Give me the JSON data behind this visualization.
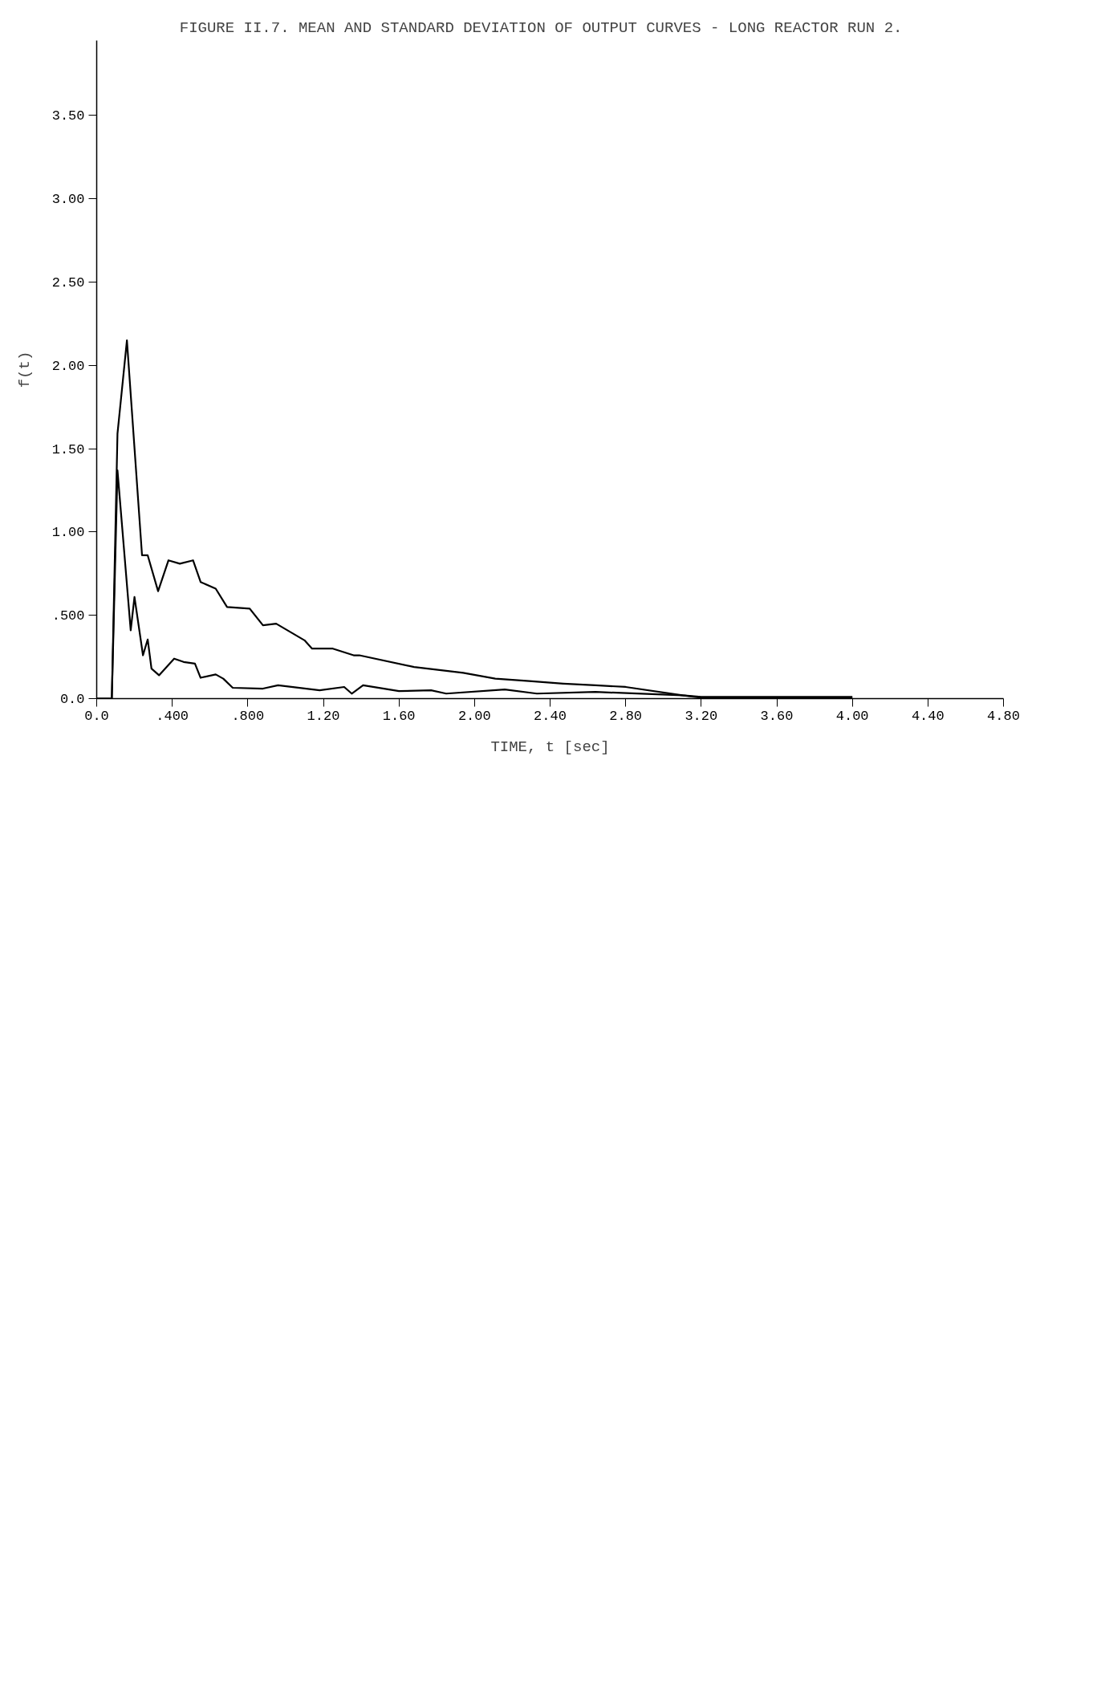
{
  "chart_data": {
    "type": "line",
    "title": "FIGURE II.7.   MEAN AND STANDARD DEVIATION OF OUTPUT CURVES - LONG REACTOR RUN 2.",
    "xlabel": "TIME, t [sec]",
    "ylabel": "f(t)",
    "xlim": [
      0,
      4.8
    ],
    "ylim": [
      0,
      3.95
    ],
    "xticks": [
      {
        "value": 0,
        "label": "0.0"
      },
      {
        "value": 0.4,
        "label": ".400"
      },
      {
        "value": 0.8,
        "label": ".800"
      },
      {
        "value": 1.2,
        "label": "1.20"
      },
      {
        "value": 1.6,
        "label": "1.60"
      },
      {
        "value": 2.0,
        "label": "2.00"
      },
      {
        "value": 2.4,
        "label": "2.40"
      },
      {
        "value": 2.8,
        "label": "2.80"
      },
      {
        "value": 3.2,
        "label": "3.20"
      },
      {
        "value": 3.6,
        "label": "3.60"
      },
      {
        "value": 4.0,
        "label": "4.00"
      },
      {
        "value": 4.4,
        "label": "4.40"
      },
      {
        "value": 4.8,
        "label": "4.80"
      }
    ],
    "yticks": [
      {
        "value": 0,
        "label": "0.0"
      },
      {
        "value": 0.5,
        "label": ".500"
      },
      {
        "value": 1.0,
        "label": "1.00"
      },
      {
        "value": 1.5,
        "label": "1.50"
      },
      {
        "value": 2.0,
        "label": "2.00"
      },
      {
        "value": 2.5,
        "label": "2.50"
      },
      {
        "value": 3.0,
        "label": "3.00"
      },
      {
        "value": 3.5,
        "label": "3.50"
      }
    ],
    "grid": false,
    "marker": "none",
    "line_style": "solid",
    "series": [
      {
        "color": "#000000",
        "x": [
          0,
          0.08,
          0.11,
          0.16,
          0.24,
          0.27,
          0.325,
          0.38,
          0.44,
          0.51,
          0.55,
          0.63,
          0.69,
          0.81,
          0.88,
          0.95,
          1.1,
          1.14,
          1.25,
          1.36,
          1.39,
          1.68,
          1.94,
          2.11,
          2.29,
          2.47,
          2.64,
          2.8,
          3.1,
          3.2,
          4.0
        ],
        "values": [
          0,
          0,
          1.59,
          2.15,
          0.86,
          0.86,
          0.645,
          0.83,
          0.81,
          0.83,
          0.7,
          0.66,
          0.55,
          0.54,
          0.44,
          0.45,
          0.35,
          0.3,
          0.3,
          0.26,
          0.26,
          0.19,
          0.155,
          0.12,
          0.105,
          0.09,
          0.08,
          0.07,
          0.02,
          0.01,
          0.01
        ]
      },
      {
        "color": "#000000",
        "x": [
          0,
          0.08,
          0.11,
          0.18,
          0.2,
          0.245,
          0.27,
          0.29,
          0.33,
          0.41,
          0.46,
          0.52,
          0.55,
          0.63,
          0.67,
          0.72,
          0.88,
          0.96,
          1.18,
          1.31,
          1.35,
          1.41,
          1.6,
          1.77,
          1.85,
          2.16,
          2.33,
          2.64,
          3.1,
          3.2,
          4.0
        ],
        "values": [
          0,
          0,
          1.37,
          0.41,
          0.61,
          0.26,
          0.355,
          0.18,
          0.14,
          0.24,
          0.22,
          0.21,
          0.125,
          0.145,
          0.12,
          0.065,
          0.06,
          0.08,
          0.05,
          0.07,
          0.03,
          0.08,
          0.045,
          0.05,
          0.03,
          0.055,
          0.03,
          0.04,
          0.02,
          0.005,
          0.005
        ]
      }
    ]
  }
}
